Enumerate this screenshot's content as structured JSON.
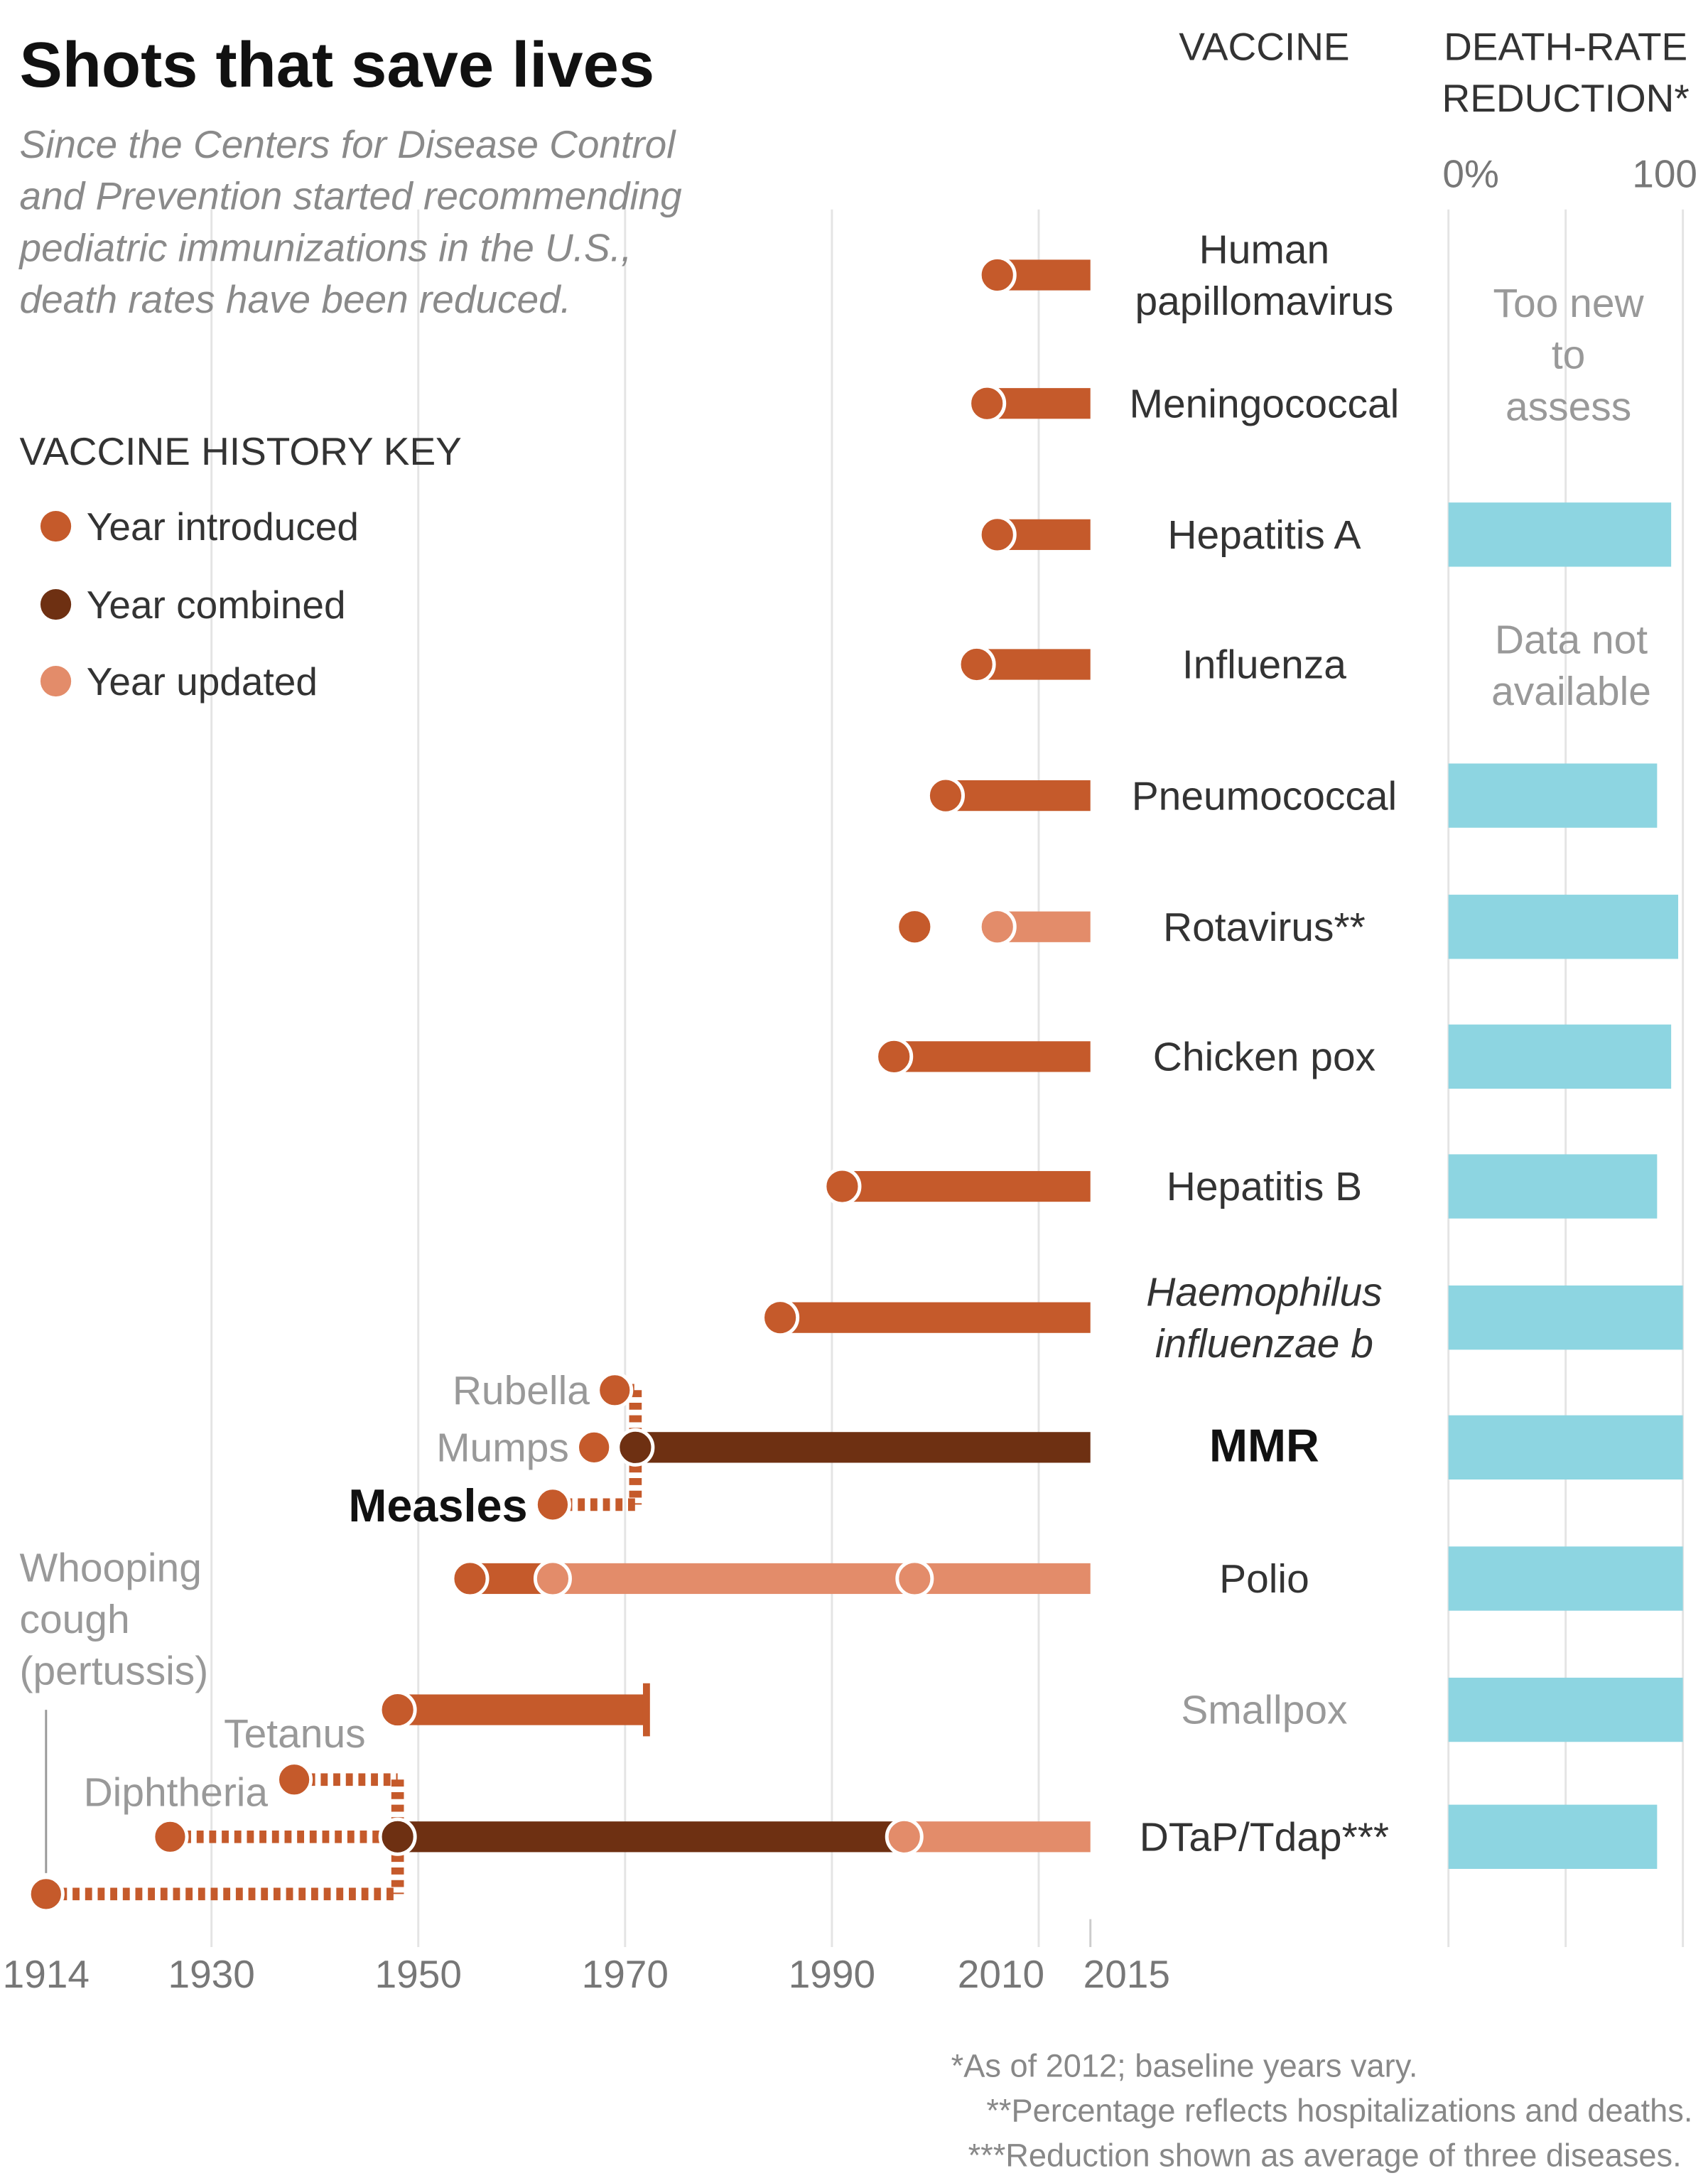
{
  "header": {
    "title": "Shots that save lives",
    "subtitle_lines": [
      "Since the Centers for Disease Control",
      "and Prevention started recommending",
      "pediatric immunizations in the U.S.,",
      "death rates have been reduced."
    ],
    "col_vaccine": "VACCINE",
    "col_death_rate": [
      "DEATH-RATE",
      "REDUCTION*"
    ]
  },
  "legend": {
    "title": "VACCINE HISTORY KEY",
    "items": [
      {
        "label": "Year introduced",
        "color": "#c55a2b"
      },
      {
        "label": "Year combined",
        "color": "#6e3012"
      },
      {
        "label": "Year updated",
        "color": "#e38c6a"
      }
    ]
  },
  "notes": {
    "too_new": [
      "Too new",
      "to",
      "assess"
    ],
    "not_available": [
      "Data not",
      "available"
    ]
  },
  "footnotes": [
    "*As of 2012; baseline years vary.",
    "**Percentage reflects hospitalizations and deaths.",
    "***Reduction shown as average of three diseases."
  ],
  "colors": {
    "introduced": "#c55a2b",
    "combined": "#6e3012",
    "updated": "#e38c6a",
    "reduction": "#8dd5e1"
  },
  "chart_data": {
    "type": "timeline",
    "title": "Shots that save lives",
    "x_axis": {
      "range": [
        1914,
        2015
      ],
      "ticks": [
        1914,
        1930,
        1950,
        1970,
        1990,
        2010,
        2015
      ]
    },
    "reduction_axis": {
      "range": [
        0,
        100
      ],
      "tick_labels": [
        "0%",
        "100"
      ]
    },
    "rows": [
      {
        "vaccine": [
          "Human",
          "papillomavirus"
        ],
        "style": "normal",
        "introduced": 2006,
        "bar": [
          [
            2006,
            2015,
            "introduced"
          ]
        ],
        "reduction": null,
        "note": "too_new"
      },
      {
        "vaccine": [
          "Meningococcal"
        ],
        "style": "normal",
        "introduced": 2005,
        "bar": [
          [
            2005,
            2015,
            "introduced"
          ]
        ],
        "reduction": null,
        "note": "too_new"
      },
      {
        "vaccine": [
          "Hepatitis A"
        ],
        "style": "normal",
        "introduced": 2006,
        "bar": [
          [
            2006,
            2015,
            "introduced"
          ]
        ],
        "reduction": 95
      },
      {
        "vaccine": [
          "Influenza"
        ],
        "style": "normal",
        "introduced": 2004,
        "bar": [
          [
            2004,
            2015,
            "introduced"
          ]
        ],
        "reduction": null,
        "note": "not_available"
      },
      {
        "vaccine": [
          "Pneumococcal"
        ],
        "style": "normal",
        "introduced": 2001,
        "bar": [
          [
            2001,
            2015,
            "introduced"
          ]
        ],
        "reduction": 89
      },
      {
        "vaccine": [
          "Rotavirus**"
        ],
        "style": "normal",
        "introduced": 1998,
        "updated": [
          2006
        ],
        "bar": [
          [
            2006,
            2015,
            "updated"
          ]
        ],
        "reduction": 98
      },
      {
        "vaccine": [
          "Chicken pox"
        ],
        "style": "normal",
        "introduced": 1996,
        "bar": [
          [
            1996,
            2015,
            "introduced"
          ]
        ],
        "reduction": 95
      },
      {
        "vaccine": [
          "Hepatitis B"
        ],
        "style": "normal",
        "introduced": 1991,
        "bar": [
          [
            1991,
            2015,
            "introduced"
          ]
        ],
        "reduction": 89
      },
      {
        "vaccine": [
          "Haemophilus",
          "influenzae b"
        ],
        "style": "italic",
        "introduced": 1985,
        "bar": [
          [
            1985,
            2015,
            "introduced"
          ]
        ],
        "reduction": 100
      },
      {
        "vaccine": [
          "MMR"
        ],
        "style": "bold",
        "combined": 1971,
        "bar": [
          [
            1971,
            2015,
            "combined"
          ]
        ],
        "reduction": 100,
        "components": [
          {
            "name": "Rubella",
            "year": 1969
          },
          {
            "name": "Mumps",
            "year": 1967
          },
          {
            "name": "Measles",
            "year": 1963
          }
        ]
      },
      {
        "vaccine": [
          "Polio"
        ],
        "style": "normal",
        "introduced": 1955,
        "updated": [
          1963,
          1998
        ],
        "bar": [
          [
            1955,
            1963,
            "introduced"
          ],
          [
            1963,
            2015,
            "updated"
          ]
        ],
        "reduction": 100
      },
      {
        "vaccine": [
          "Smallpox"
        ],
        "style": "gray",
        "introduced": 1948,
        "ended": 1972,
        "bar": [
          [
            1948,
            1972,
            "introduced"
          ]
        ],
        "reduction": 100
      },
      {
        "vaccine": [
          "DTaP/Tdap***"
        ],
        "style": "normal",
        "combined": 1948,
        "updated": [
          1997
        ],
        "bar": [
          [
            1948,
            1997,
            "combined"
          ],
          [
            1997,
            2015,
            "updated"
          ]
        ],
        "reduction": 89,
        "components": [
          {
            "name": "Tetanus",
            "year": 1938
          },
          {
            "name": "Diphtheria",
            "year": 1926
          },
          {
            "name": "Whooping cough (pertussis)",
            "label_lines": [
              "Whooping",
              "cough",
              "(pertussis)"
            ],
            "year": 1914
          }
        ]
      }
    ]
  }
}
